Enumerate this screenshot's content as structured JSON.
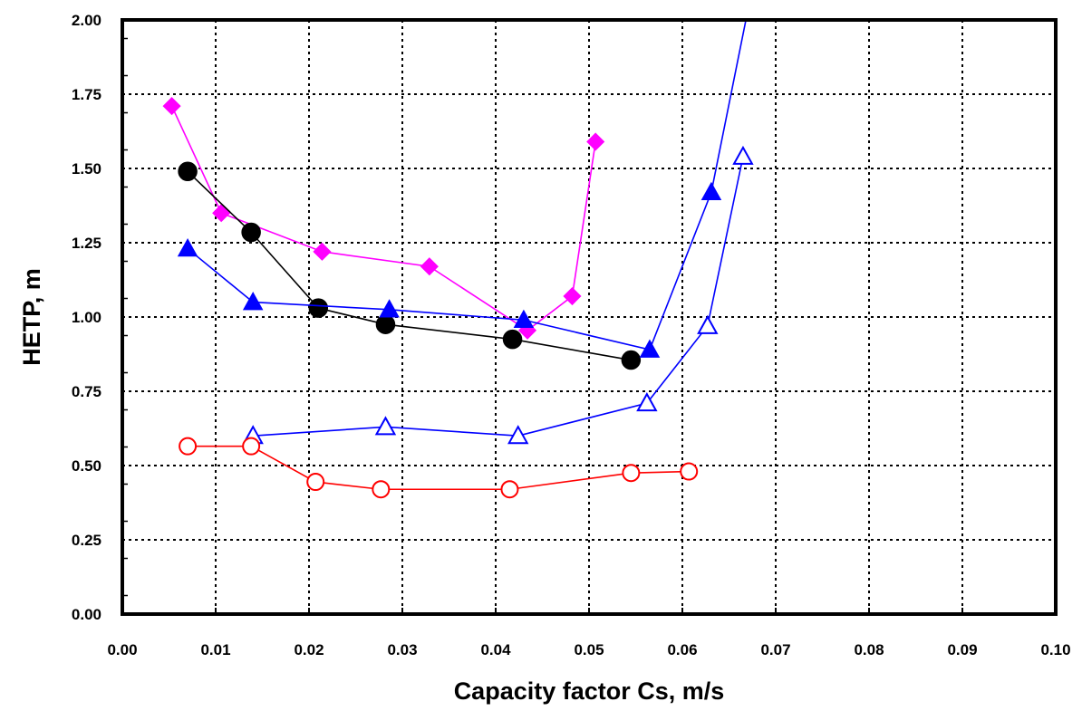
{
  "chart_data": {
    "type": "scatter",
    "title": "",
    "xlabel": "Capacity factor Cs, m/s",
    "ylabel": "HETP,  m",
    "xlim": [
      0,
      0.1
    ],
    "ylim": [
      0,
      2.0
    ],
    "grid": true,
    "x_ticks": [
      "0.00",
      "0.01",
      "0.02",
      "0.03",
      "0.04",
      "0.05",
      "0.06",
      "0.07",
      "0.08",
      "0.09",
      "0.10"
    ],
    "y_ticks": [
      "0.00",
      "0.25",
      "0.50",
      "0.75",
      "1.00",
      "1.25",
      "1.50",
      "1.75",
      "2.00"
    ],
    "series": [
      {
        "color": "#ff00ff",
        "marker": "diamond",
        "filled": true,
        "x": [
          0.0053,
          0.0106,
          0.0214,
          0.0329,
          0.0434,
          0.0482,
          0.0507
        ],
        "y": [
          1.71,
          1.35,
          1.22,
          1.17,
          0.955,
          1.07,
          1.59
        ]
      },
      {
        "color": "#000000",
        "marker": "circle",
        "filled": true,
        "x": [
          0.007,
          0.0138,
          0.021,
          0.0282,
          0.0418,
          0.0545
        ],
        "y": [
          1.49,
          1.285,
          1.03,
          0.975,
          0.925,
          0.855
        ]
      },
      {
        "color": "#0000ff",
        "marker": "triangle",
        "filled": true,
        "x": [
          0.007,
          0.014,
          0.0286,
          0.043,
          0.0565,
          0.0631,
          0.067
        ],
        "y": [
          1.23,
          1.05,
          1.025,
          0.99,
          0.89,
          1.42,
          2.03
        ]
      },
      {
        "color": "#0000ff",
        "marker": "triangle",
        "filled": false,
        "x": [
          0.014,
          0.0282,
          0.0424,
          0.0562,
          0.0627,
          0.0665
        ],
        "y": [
          0.6,
          0.63,
          0.6,
          0.71,
          0.97,
          1.54
        ]
      },
      {
        "color": "#ff0000",
        "marker": "circle",
        "filled": false,
        "x": [
          0.007,
          0.0138,
          0.0207,
          0.0277,
          0.0415,
          0.0545,
          0.0607
        ],
        "y": [
          0.565,
          0.565,
          0.445,
          0.42,
          0.42,
          0.475,
          0.48
        ]
      }
    ]
  }
}
